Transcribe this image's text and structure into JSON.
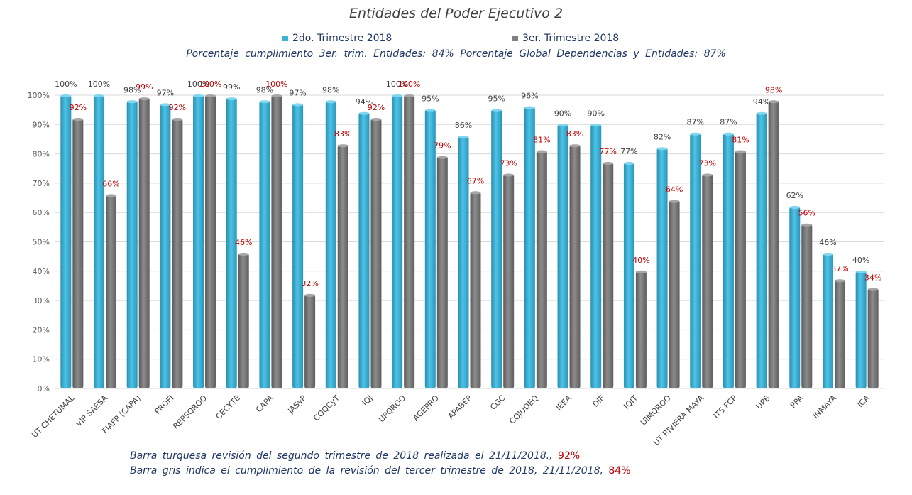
{
  "chart_data": {
    "type": "bar",
    "title": "Entidades del Poder Ejecutivo 2",
    "categories": [
      "UT CHETUMAL",
      "VIP SAESA",
      "FIAFP (CAPA)",
      "PROFI",
      "REPSQROO",
      "CECYTE",
      "CAPA",
      "JASyP",
      "COQCyT",
      "IQJ",
      "UPQROO",
      "AGEPRO",
      "APABEP",
      "CGC",
      "COJUDEQ",
      "IEEA",
      "DIF",
      "IQIT",
      "UIMQROO",
      "UT RIVIERA MAYA",
      "ITS FCP",
      "UPB",
      "PPA",
      "INMAYA",
      "ICA"
    ],
    "series": [
      {
        "name": "2do. Trimestre 2018",
        "color": "#3cb3d6",
        "values": [
          100,
          100,
          98,
          97,
          100,
          99,
          98,
          97,
          98,
          94,
          100,
          95,
          86,
          95,
          96,
          90,
          90,
          77,
          82,
          87,
          87,
          94,
          62,
          46,
          40
        ]
      },
      {
        "name": "3er. Trimestre 2018",
        "color": "#7f7f7f",
        "values": [
          92,
          66,
          99,
          92,
          100,
          46,
          100,
          32,
          83,
          92,
          100,
          79,
          67,
          73,
          81,
          83,
          77,
          40,
          64,
          73,
          81,
          98,
          56,
          37,
          34
        ]
      }
    ],
    "ylim": [
      0,
      100
    ],
    "yticks": [
      "0%",
      "10%",
      "20%",
      "30%",
      "40%",
      "50%",
      "60%",
      "70%",
      "80%",
      "90%",
      "100%"
    ],
    "grid": true,
    "legend": "top-center",
    "label_colors": {
      "series2": "#404040",
      "series3": "#c00000"
    }
  },
  "legend": {
    "item1": "2do. Trimestre 2018",
    "item2": "3er. Trimestre 2018"
  },
  "notes": {
    "top": "Porcentaje cumplimiento 3er. trim. Entidades: 84%   Porcentaje Global Dependencias y Entidades: 87%",
    "foot1_text": "Barra turquesa revisión del segundo trimestre de 2018 realizada el 21/11/2018.,",
    "foot1_value": "92%",
    "foot2_text": "Barra gris indica el cumplimiento de la revisión del tercer trimestre de 2018, 21/11/2018,",
    "foot2_value": "84%"
  }
}
